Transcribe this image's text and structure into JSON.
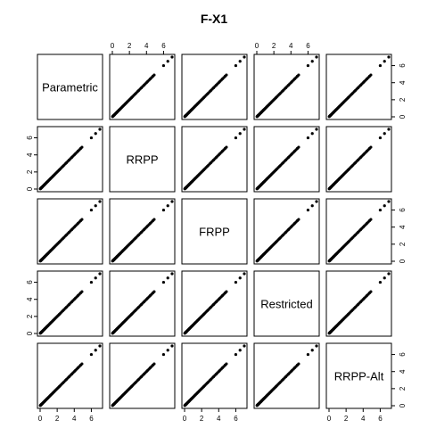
{
  "chart_data": {
    "type": "scatter",
    "subtype": "pairs-matrix",
    "title": "F-X1",
    "variables": [
      "Parametric",
      "RRPP",
      "FRPP",
      "Restricted",
      "RRPP-Alt"
    ],
    "axis_range": [
      0,
      7
    ],
    "ticks": [
      "0",
      "2",
      "4",
      "6"
    ],
    "tick_values": [
      0,
      2,
      4,
      6
    ],
    "grid": false,
    "legend": "none",
    "point_color": "#000000",
    "values": [
      0.02,
      0.05,
      0.08,
      0.11,
      0.14,
      0.17,
      0.2,
      0.24,
      0.28,
      0.32,
      0.36,
      0.4,
      0.45,
      0.5,
      0.55,
      0.6,
      0.66,
      0.72,
      0.78,
      0.85,
      0.92,
      1.0,
      1.08,
      1.16,
      1.25,
      1.34,
      1.44,
      1.54,
      1.65,
      1.76,
      1.88,
      2.0,
      2.12,
      2.25,
      2.38,
      2.52,
      2.66,
      2.8,
      2.95,
      3.1,
      3.25,
      3.4,
      3.55,
      3.7,
      3.85,
      4.0,
      4.15,
      4.3,
      4.45,
      4.6,
      4.75,
      4.9,
      6.0,
      6.5,
      7.0
    ]
  }
}
